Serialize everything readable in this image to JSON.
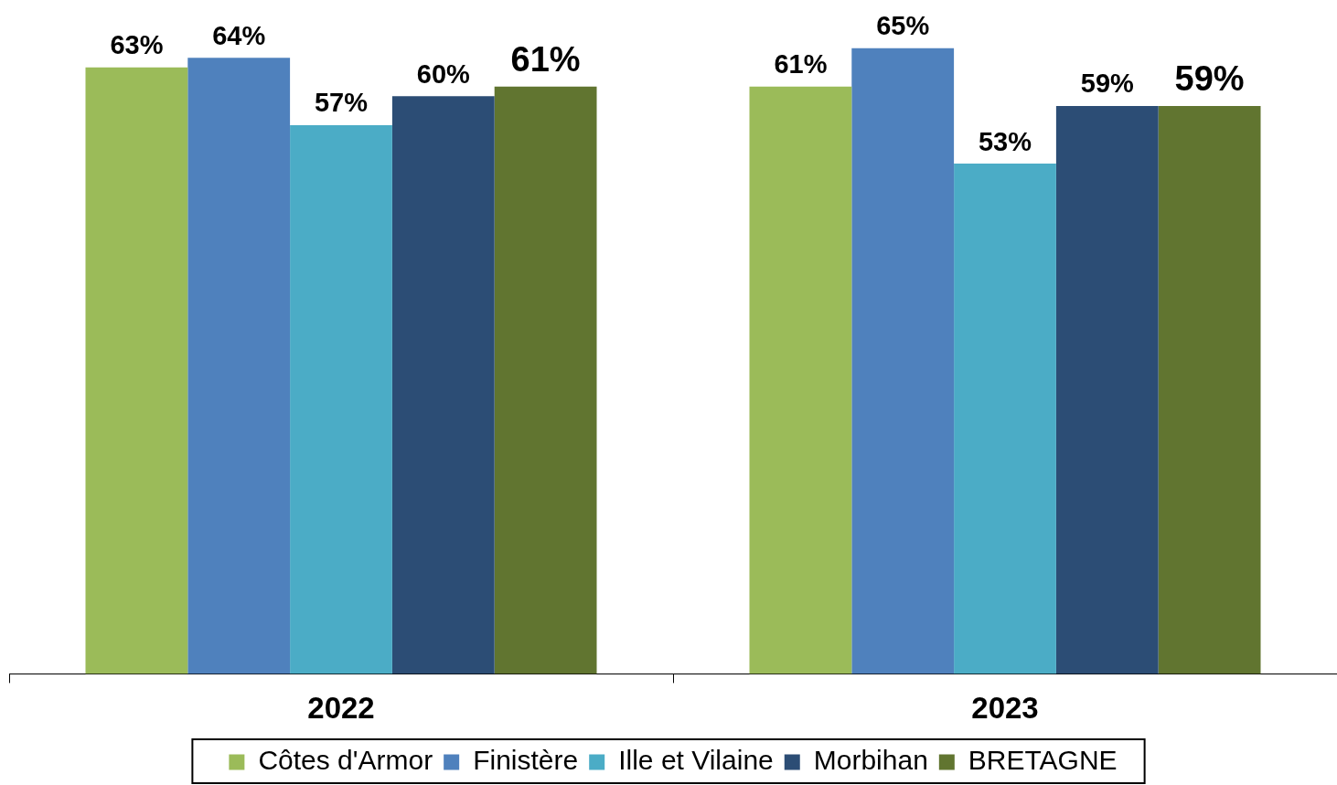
{
  "chart_data": {
    "type": "bar",
    "categories": [
      "2022",
      "2023"
    ],
    "series": [
      {
        "name": "Côtes d'Armor",
        "color": "#9bbb59",
        "values": [
          63,
          61
        ],
        "value_labels": [
          "63%",
          "61%"
        ]
      },
      {
        "name": "Finistère",
        "color": "#4f81bd",
        "values": [
          64,
          65
        ],
        "value_labels": [
          "64%",
          "65%"
        ]
      },
      {
        "name": "Ille et Vilaine",
        "color": "#4bacc6",
        "values": [
          57,
          53
        ],
        "value_labels": [
          "57%",
          "53%"
        ]
      },
      {
        "name": "Morbihan",
        "color": "#2c4d75",
        "values": [
          60,
          59
        ],
        "value_labels": [
          "60%",
          "59%"
        ]
      },
      {
        "name": "BRETAGNE",
        "color": "#617530",
        "values": [
          61,
          59
        ],
        "value_labels": [
          "61%",
          "59%"
        ]
      }
    ],
    "legend": "bottom",
    "grid": false,
    "tick_labels": "x"
  }
}
